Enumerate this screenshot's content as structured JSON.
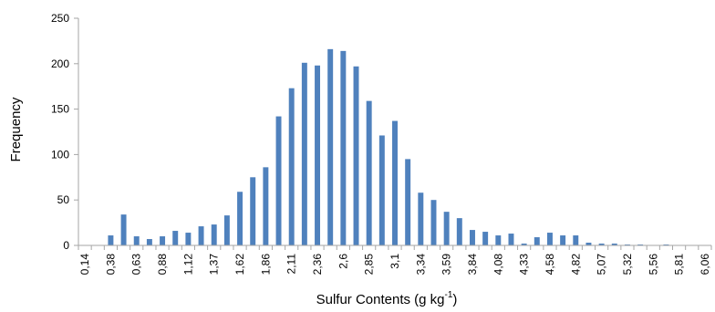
{
  "chart_data": {
    "type": "bar",
    "ylabel": "Frequency",
    "xlabel": "Sulfur Contents (g kg",
    "xlabel_sup": "-1",
    "xlabel_close": ")",
    "ylim": [
      0,
      250
    ],
    "yticks": [
      "0",
      "50",
      "100",
      "150",
      "200",
      "250"
    ],
    "ytick_values": [
      0,
      50,
      100,
      150,
      200,
      250
    ],
    "xtick_labels": [
      "0,14",
      "0,38",
      "0,63",
      "0,88",
      "1,12",
      "1,37",
      "1,62",
      "1,86",
      "2,11",
      "2,36",
      "2,6",
      "2,85",
      "3,1",
      "3,34",
      "3,59",
      "3,84",
      "4,08",
      "4,33",
      "4,58",
      "4,82",
      "5,07",
      "5,32",
      "5,56",
      "5,81",
      "6,06"
    ],
    "bin_count": 49,
    "values": [
      0,
      0,
      11,
      34,
      10,
      7,
      10,
      16,
      14,
      21,
      23,
      33,
      59,
      75,
      86,
      142,
      173,
      201,
      198,
      216,
      214,
      197,
      159,
      121,
      137,
      95,
      58,
      50,
      37,
      30,
      17,
      15,
      11,
      13,
      2,
      9,
      14,
      11,
      11,
      3,
      2,
      2,
      1,
      1,
      0,
      1,
      0,
      0,
      0
    ],
    "bar_color": "#4f81bd",
    "grid": false
  }
}
